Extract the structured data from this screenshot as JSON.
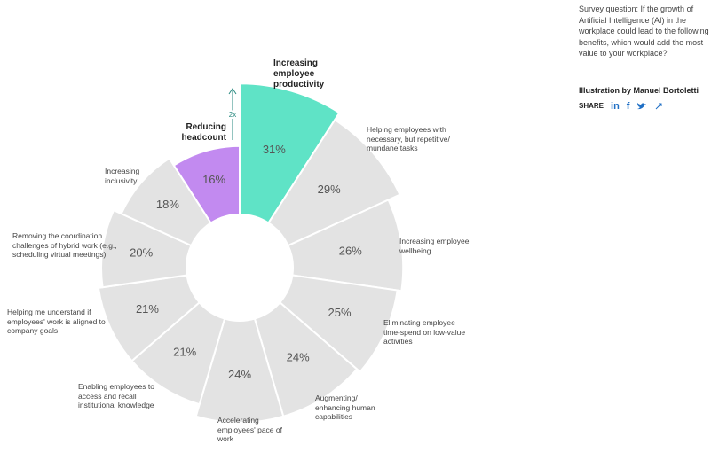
{
  "chart_data": {
    "type": "radial-bar",
    "categories": [
      "Increasing employee productivity",
      "Helping employees with necessary, but repetitive/ mundane tasks",
      "Increasing employee wellbeing",
      "Eliminating employee time-spend on low-value activities",
      "Augmenting/ enhancing human capabilities",
      "Accelerating employees' pace of work",
      "Enabling employees to access and recall institutional knowledge",
      "Helping me understand if employees' work is aligned to company goals",
      "Removing the coordination challenges of hybrid work (e.g., scheduling virtual meetings)",
      "Increasing inclusivity",
      "Reducing headcount"
    ],
    "values": [
      31,
      29,
      26,
      25,
      24,
      24,
      21,
      21,
      20,
      18,
      16
    ],
    "value_labels": [
      "31%",
      "29%",
      "26%",
      "25%",
      "24%",
      "24%",
      "21%",
      "21%",
      "20%",
      "18%",
      "16%"
    ],
    "colors": [
      "#5fe3c6",
      "#e3e3e3",
      "#e3e3e3",
      "#e3e3e3",
      "#e3e3e3",
      "#e3e3e3",
      "#e3e3e3",
      "#e3e3e3",
      "#e3e3e3",
      "#e3e3e3",
      "#c28af0"
    ],
    "annotation": "2x"
  },
  "sidebar": {
    "question": "Survey question: If the growth of Artificial Intelligence (AI) in the workplace could lead to the following benefits, which would add the most value to your workplace?",
    "credit": "Illustration by Manuel Bortoletti",
    "share": "SHARE",
    "share_links": [
      "in",
      "f"
    ]
  }
}
